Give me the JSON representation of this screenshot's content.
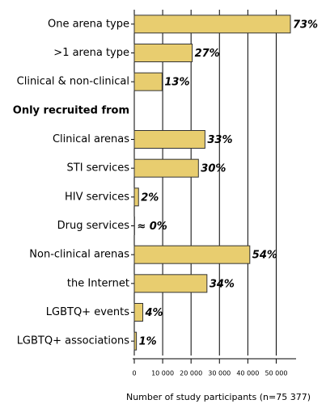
{
  "chart_data": {
    "type": "hbar",
    "x_label": "Number of study participants (n=75 377)",
    "categories": [
      "One arena type",
      ">1 arena type",
      "Clinical & non-clinical",
      "Only recruited from",
      "Clinical arenas",
      "STI services",
      "HIV services",
      "Drug services",
      "Non-clinical arenas",
      "the Internet",
      "LGBTQ+ events",
      "LGBTQ+ associations"
    ],
    "values": [
      55000,
      20400,
      9800,
      null,
      24900,
      22600,
      1500,
      100,
      40700,
      25600,
      3000,
      750
    ],
    "value_labels": [
      "73%",
      "27%",
      "13%",
      null,
      "33%",
      "30%",
      "2%",
      "≈ 0%",
      "54%",
      "34%",
      "4%",
      "1%"
    ],
    "color": "#e8cd6f",
    "xlim": [
      0,
      57000
    ],
    "xticks": [
      0,
      {
        "value": 10000,
        "label": "10 000"
      },
      {
        "value": 20000,
        "label": "20 000"
      },
      {
        "value": 30000,
        "label": "30 000"
      },
      {
        "value": 40000,
        "label": "40 000"
      },
      {
        "value": 50000,
        "label": "50 000"
      }
    ],
    "grid": true
  }
}
